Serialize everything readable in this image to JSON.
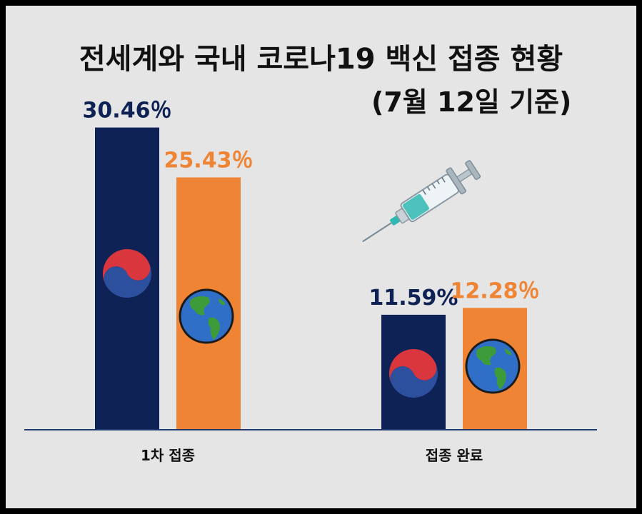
{
  "title": "전세계와 국내 코로나19 백신 접종 현황",
  "subtitle": "(7월 12일 기준)",
  "colors": {
    "korea": "#0f2255",
    "world": "#ee8434",
    "axis": "#1f3a6e",
    "background": "#e5e5e5"
  },
  "chart_data": {
    "type": "bar",
    "categories": [
      "1차 접종",
      "접종 완료"
    ],
    "series": [
      {
        "icon": "taegeuk-icon",
        "color": "#0f2255",
        "values": [
          30.46,
          11.59
        ],
        "labels": [
          "30.46％",
          "11.59%"
        ]
      },
      {
        "icon": "globe-icon",
        "color": "#ee8434",
        "values": [
          25.43,
          12.28
        ],
        "labels": [
          "25.43％",
          "12.28％"
        ]
      }
    ],
    "ylim": [
      0,
      40
    ],
    "grid": false,
    "decorations": [
      "syringe-icon"
    ]
  }
}
